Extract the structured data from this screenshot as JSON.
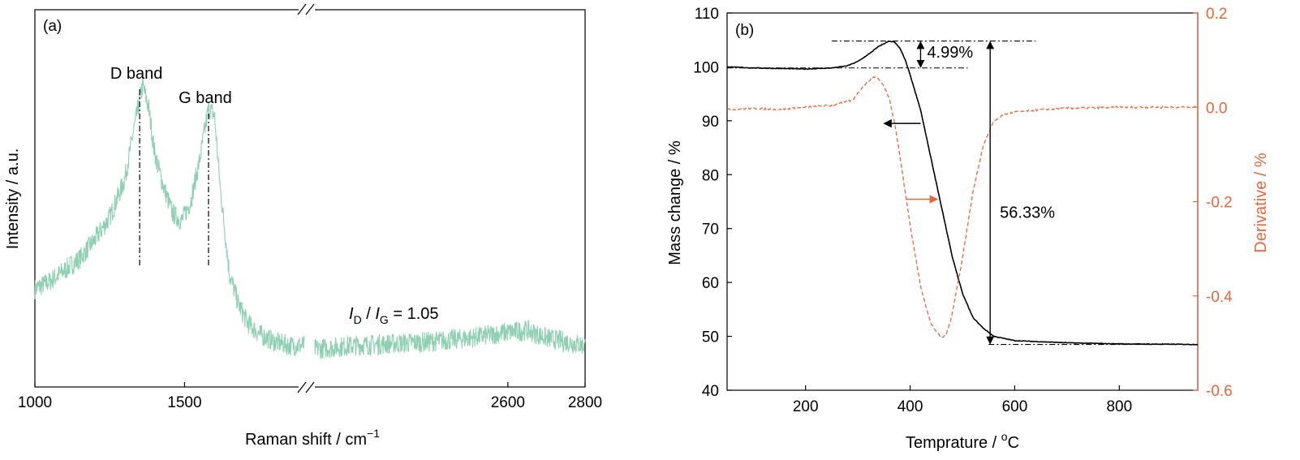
{
  "colors": {
    "raman": "#8fd0b2",
    "mass": "#000000",
    "derivative": "#e8673a",
    "axis": "#000000"
  },
  "chart_data": [
    {
      "type": "line",
      "panel_label": "(a)",
      "xlabel": "Raman shift / cm",
      "xlabel_superscript": "−1",
      "ylabel": "Intensity / a.u.",
      "x_axis_break": true,
      "segments": [
        {
          "xlim": [
            1000,
            1900
          ],
          "ticks": [
            "1000",
            "1500"
          ],
          "tick_values": [
            1000,
            1500
          ]
        },
        {
          "xlim": [
            2100,
            2800
          ],
          "ticks": [
            "2600",
            "2800"
          ],
          "tick_values": [
            2600,
            2800
          ]
        }
      ],
      "y_ticks_shown": false,
      "series": [
        {
          "style": "noisy-line",
          "x": [
            1000,
            1050,
            1100,
            1150,
            1200,
            1250,
            1300,
            1330,
            1360,
            1380,
            1400,
            1430,
            1460,
            1490,
            1520,
            1550,
            1580,
            1600,
            1620,
            1650,
            1680,
            1710,
            1750,
            1800,
            1850,
            1900
          ],
          "y": [
            0.26,
            0.28,
            0.31,
            0.34,
            0.39,
            0.45,
            0.55,
            0.68,
            0.8,
            0.74,
            0.62,
            0.53,
            0.46,
            0.44,
            0.49,
            0.6,
            0.74,
            0.72,
            0.52,
            0.3,
            0.22,
            0.17,
            0.14,
            0.12,
            0.11,
            0.11
          ]
        },
        {
          "style": "noisy-line",
          "x": [
            2100,
            2200,
            2300,
            2400,
            2500,
            2600,
            2650,
            2700,
            2750,
            2800
          ],
          "y": [
            0.1,
            0.11,
            0.115,
            0.12,
            0.13,
            0.145,
            0.15,
            0.13,
            0.12,
            0.11
          ]
        }
      ],
      "peaks": [
        {
          "label": "D band",
          "x": 1350
        },
        {
          "label": "G band",
          "x": 1580
        }
      ],
      "ratio": {
        "i1": "I",
        "sub1": "D",
        "slash": " / ",
        "i2": "I",
        "sub2": "G",
        "value": " = 1.05"
      }
    },
    {
      "type": "line",
      "panel_label": "(b)",
      "xlabel": "Temprature / ",
      "xlabel_super": "o",
      "xlabel_tail": "C",
      "ylabel": "Mass change  / %",
      "ylabel_right": "Derivative  / %",
      "xlim": [
        50,
        950
      ],
      "ylim": [
        40,
        110
      ],
      "ylim_right": [
        -0.6,
        0.2
      ],
      "x_ticks": [
        200,
        400,
        600,
        800
      ],
      "y_ticks": [
        40,
        50,
        60,
        70,
        80,
        90,
        100,
        110
      ],
      "y_ticks_right": [
        -0.6,
        -0.4,
        -0.2,
        0.0,
        0.2
      ],
      "y_tick_labels_right": [
        "-0.6",
        "-0.4",
        "-0.2",
        "0.0",
        "0.2"
      ],
      "series": [
        {
          "axis": "left",
          "style": "solid",
          "x": [
            50,
            100,
            150,
            200,
            250,
            280,
            300,
            320,
            340,
            360,
            370,
            380,
            390,
            400,
            420,
            440,
            460,
            480,
            500,
            520,
            540,
            560,
            600,
            700,
            800,
            950
          ],
          "y": [
            100.0,
            99.8,
            99.7,
            99.6,
            99.8,
            100.2,
            101.0,
            102.3,
            103.8,
            104.8,
            104.6,
            103.5,
            101.5,
            98.5,
            92.0,
            83.0,
            74.0,
            65.0,
            58.0,
            53.5,
            51.5,
            50.0,
            49.2,
            48.8,
            48.6,
            48.5
          ]
        },
        {
          "axis": "right",
          "style": "dashed",
          "x": [
            50,
            100,
            150,
            200,
            250,
            290,
            310,
            330,
            340,
            350,
            360,
            370,
            380,
            400,
            420,
            440,
            460,
            470,
            480,
            500,
            520,
            540,
            560,
            580,
            600,
            650,
            700,
            800,
            950
          ],
          "y": [
            -0.005,
            -0.002,
            -0.005,
            0.0,
            0.004,
            0.015,
            0.045,
            0.065,
            0.06,
            0.045,
            0.02,
            -0.03,
            -0.1,
            -0.25,
            -0.38,
            -0.46,
            -0.49,
            -0.48,
            -0.44,
            -0.32,
            -0.18,
            -0.08,
            -0.03,
            -0.015,
            -0.01,
            -0.005,
            -0.002,
            0.0,
            0.0
          ]
        }
      ],
      "annotations": [
        {
          "text": "4.99%",
          "x1": 364,
          "y_from": 104.8,
          "y_to": 99.8
        },
        {
          "text": "56.33%",
          "x1": 553,
          "y_from": 104.8,
          "y_to": 48.5
        }
      ]
    }
  ]
}
